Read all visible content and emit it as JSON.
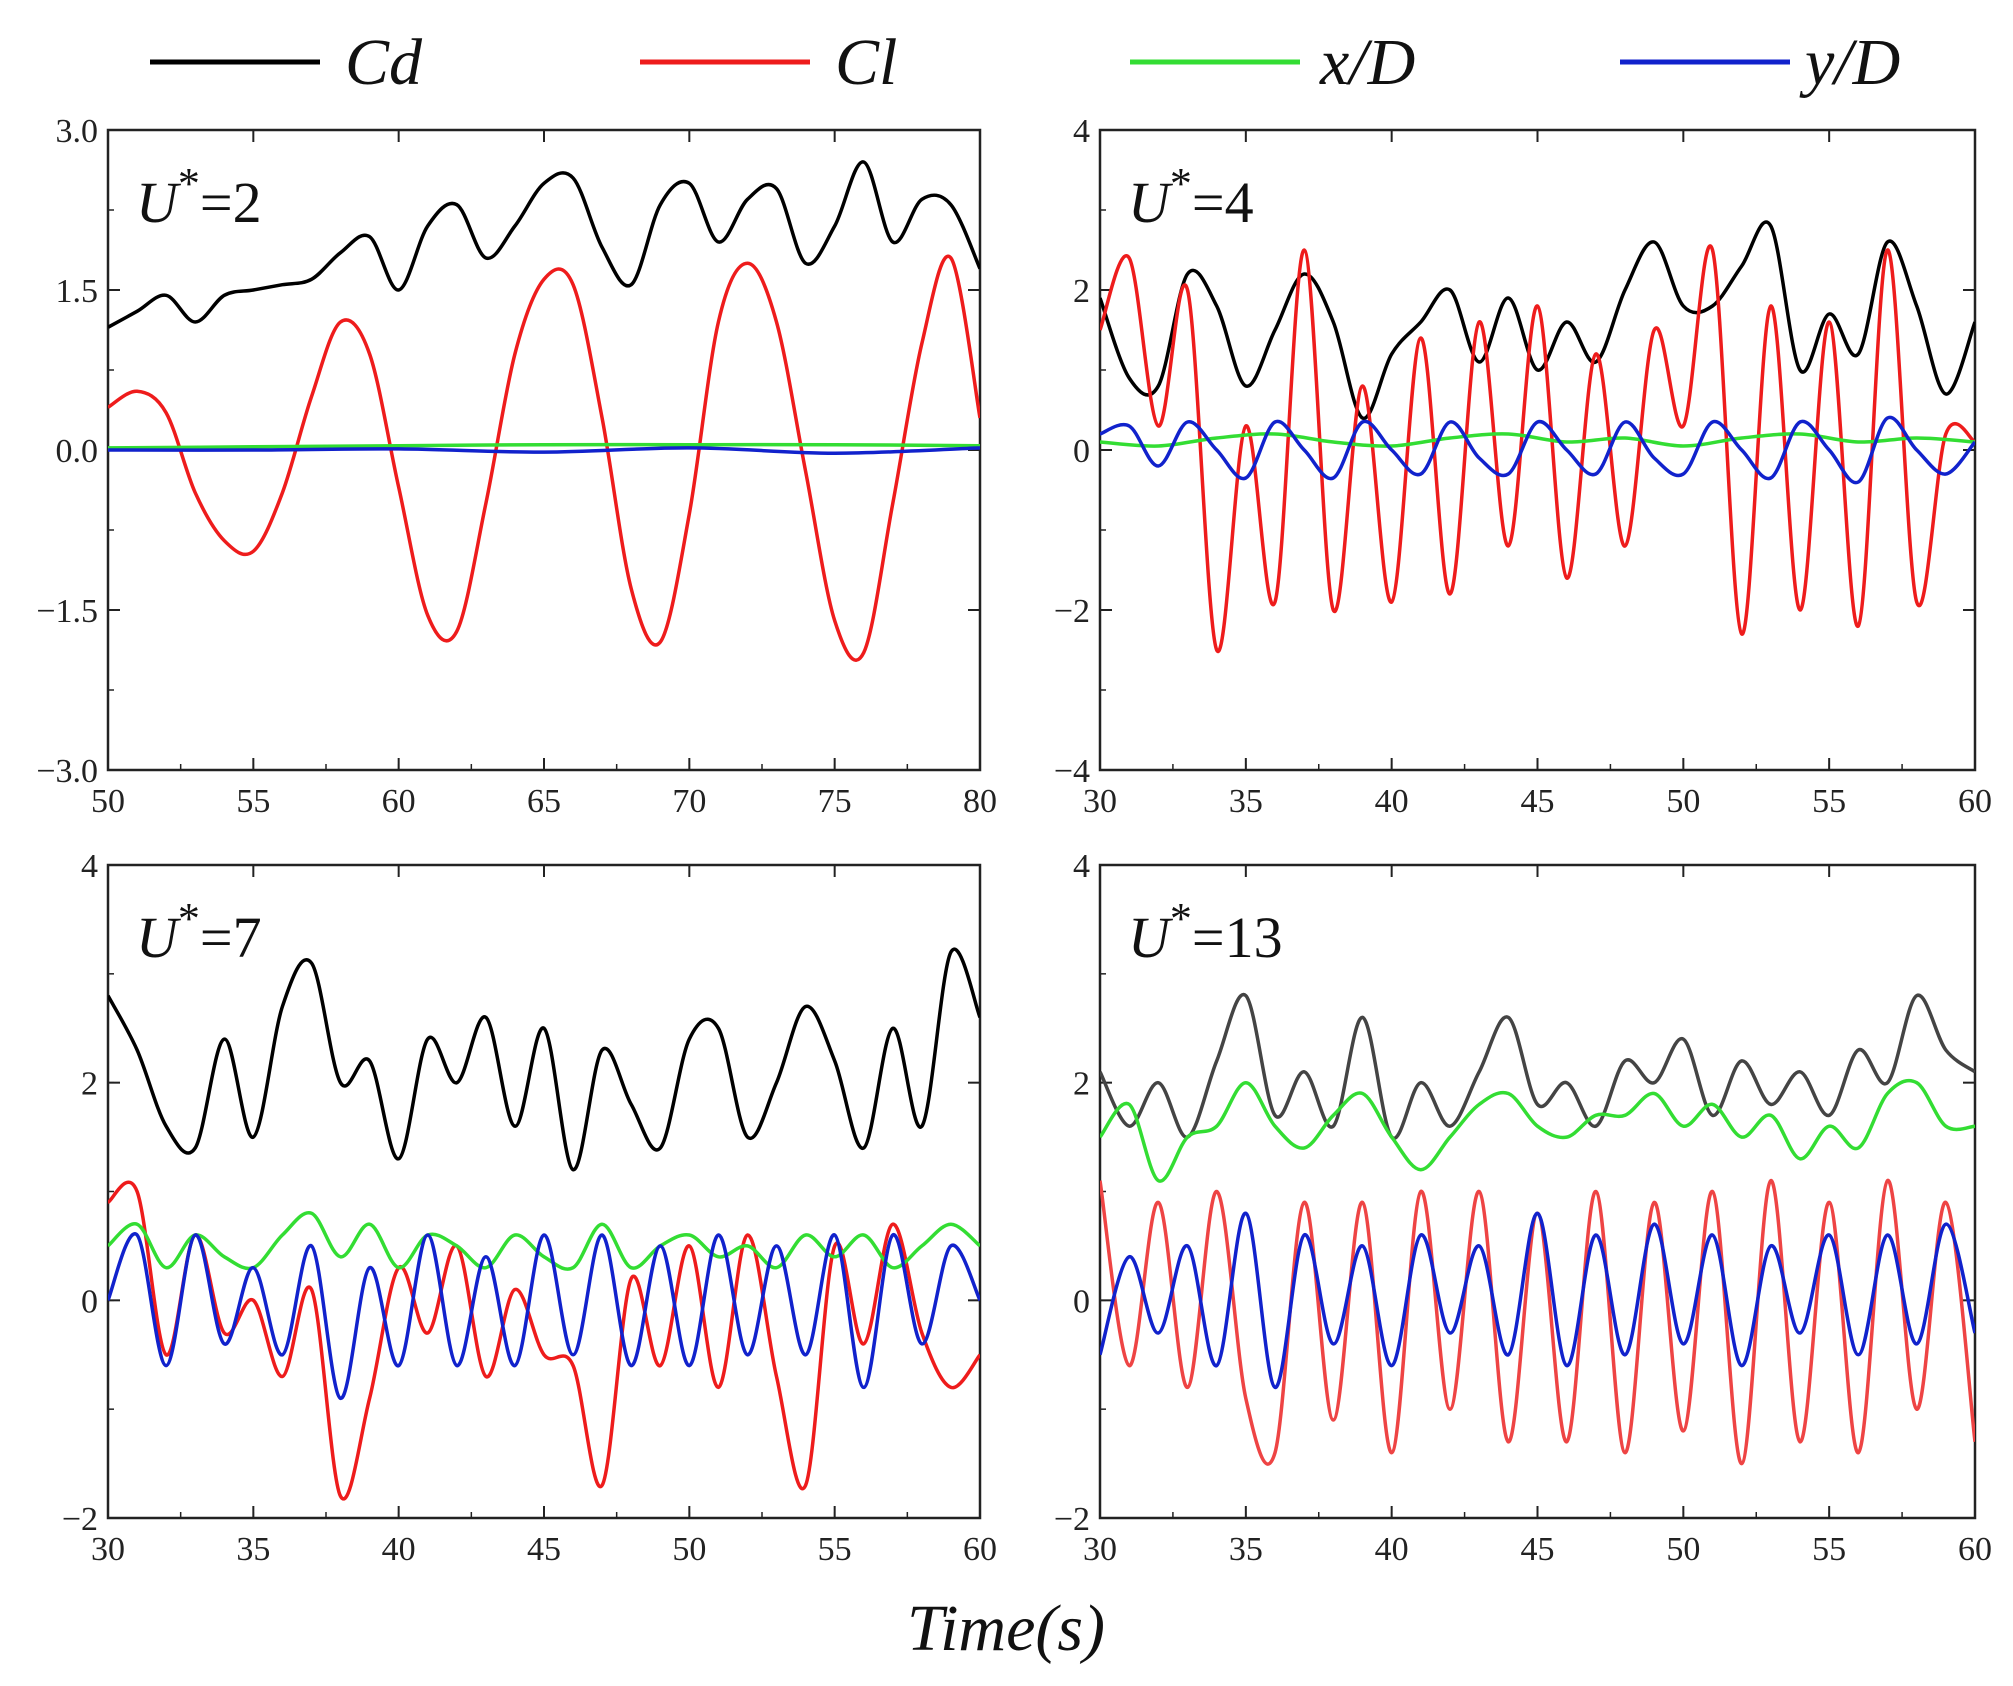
{
  "figure": {
    "xlabel": "Time(s)"
  },
  "legend": [
    {
      "label": "Cd",
      "color": "#000000"
    },
    {
      "label": "Cl",
      "color": "#ee1c1c"
    },
    {
      "label": "x/D",
      "color": "#33dd33"
    },
    {
      "label": "y/D",
      "color": "#1122cc"
    }
  ],
  "chart_data": [
    {
      "type": "line",
      "title": "U*=2",
      "xlim": [
        50,
        80
      ],
      "ylim": [
        -3.0,
        3.0
      ],
      "xticks": [
        50,
        55,
        60,
        65,
        70,
        75,
        80
      ],
      "yticks": [
        -3.0,
        -1.5,
        0.0,
        1.5,
        3.0
      ],
      "ytick_labels": [
        "−3.0",
        "−1.5",
        "0.0",
        "1.5",
        "3.0"
      ],
      "series": [
        {
          "name": "Cd",
          "color": "#000000",
          "x": [
            50,
            51,
            52,
            53,
            54,
            55,
            56,
            57,
            58,
            59,
            60,
            61,
            62,
            63,
            64,
            65,
            66,
            67,
            68,
            69,
            70,
            71,
            72,
            73,
            74,
            75,
            76,
            77,
            78,
            79,
            80
          ],
          "y": [
            1.15,
            1.3,
            1.45,
            1.2,
            1.45,
            1.5,
            1.55,
            1.6,
            1.85,
            2.0,
            1.5,
            2.1,
            2.3,
            1.8,
            2.1,
            2.5,
            2.55,
            1.9,
            1.55,
            2.3,
            2.5,
            1.95,
            2.35,
            2.45,
            1.75,
            2.1,
            2.7,
            1.95,
            2.35,
            2.3,
            1.7
          ]
        },
        {
          "name": "Cl",
          "color": "#ee1c1c",
          "x": [
            50,
            51,
            52,
            53,
            54,
            55,
            56,
            57,
            58,
            59,
            60,
            61,
            62,
            63,
            64,
            65,
            66,
            67,
            68,
            69,
            70,
            71,
            72,
            73,
            74,
            75,
            76,
            77,
            78,
            79,
            80
          ],
          "y": [
            0.4,
            0.55,
            0.35,
            -0.4,
            -0.85,
            -0.95,
            -0.4,
            0.5,
            1.2,
            0.9,
            -0.35,
            -1.55,
            -1.7,
            -0.5,
            0.9,
            1.6,
            1.55,
            0.3,
            -1.3,
            -1.8,
            -0.6,
            1.2,
            1.75,
            1.2,
            -0.2,
            -1.6,
            -1.9,
            -0.5,
            1.0,
            1.8,
            0.3
          ]
        },
        {
          "name": "x/D",
          "color": "#33dd33",
          "x": [
            50,
            55,
            60,
            65,
            70,
            75,
            80
          ],
          "y": [
            0.02,
            0.03,
            0.04,
            0.05,
            0.05,
            0.05,
            0.04
          ]
        },
        {
          "name": "y/D",
          "color": "#1122cc",
          "x": [
            50,
            55,
            60,
            65,
            70,
            75,
            80
          ],
          "y": [
            0.0,
            0.0,
            0.01,
            -0.02,
            0.02,
            -0.03,
            0.02
          ]
        }
      ]
    },
    {
      "type": "line",
      "title": "U*=4",
      "xlim": [
        30,
        60
      ],
      "ylim": [
        -4,
        4
      ],
      "xticks": [
        30,
        35,
        40,
        45,
        50,
        55,
        60
      ],
      "yticks": [
        -4,
        -2,
        0,
        2,
        4
      ],
      "ytick_labels": [
        "−4",
        "−2",
        "0",
        "2",
        "4"
      ],
      "series": [
        {
          "name": "Cd",
          "color": "#000000",
          "x": [
            30,
            31,
            32,
            33,
            34,
            35,
            36,
            37,
            38,
            39,
            40,
            41,
            42,
            43,
            44,
            45,
            46,
            47,
            48,
            49,
            50,
            51,
            52,
            53,
            54,
            55,
            56,
            57,
            58,
            59,
            60
          ],
          "y": [
            1.9,
            0.9,
            0.8,
            2.2,
            1.8,
            0.8,
            1.5,
            2.2,
            1.6,
            0.4,
            1.2,
            1.6,
            2.0,
            1.1,
            1.9,
            1.0,
            1.6,
            1.1,
            2.0,
            2.6,
            1.8,
            1.8,
            2.3,
            2.8,
            1.0,
            1.7,
            1.2,
            2.6,
            1.8,
            0.7,
            1.6
          ]
        },
        {
          "name": "Cl",
          "color": "#ee1c1c",
          "x": [
            30,
            31,
            32,
            33,
            34,
            35,
            36,
            37,
            38,
            39,
            40,
            41,
            42,
            43,
            44,
            45,
            46,
            47,
            48,
            49,
            50,
            51,
            52,
            53,
            54,
            55,
            56,
            57,
            58,
            59,
            60
          ],
          "y": [
            1.5,
            2.4,
            0.3,
            2.0,
            -2.5,
            0.3,
            -1.9,
            2.5,
            -2.0,
            0.8,
            -1.9,
            1.4,
            -1.8,
            1.6,
            -1.2,
            1.8,
            -1.6,
            1.2,
            -1.2,
            1.5,
            0.3,
            2.5,
            -2.3,
            1.8,
            -2.0,
            1.6,
            -2.2,
            2.5,
            -1.9,
            0.2,
            0.1
          ]
        },
        {
          "name": "x/D",
          "color": "#33dd33",
          "x": [
            30,
            32,
            34,
            36,
            38,
            40,
            42,
            44,
            46,
            48,
            50,
            52,
            54,
            56,
            58,
            60
          ],
          "y": [
            0.1,
            0.05,
            0.15,
            0.2,
            0.1,
            0.05,
            0.15,
            0.2,
            0.1,
            0.15,
            0.05,
            0.15,
            0.2,
            0.1,
            0.15,
            0.1
          ]
        },
        {
          "name": "y/D",
          "color": "#1122cc",
          "x": [
            30,
            31,
            32,
            33,
            34,
            35,
            36,
            37,
            38,
            39,
            40,
            41,
            42,
            43,
            44,
            45,
            46,
            47,
            48,
            49,
            50,
            51,
            52,
            53,
            54,
            55,
            56,
            57,
            58,
            59,
            60
          ],
          "y": [
            0.2,
            0.3,
            -0.2,
            0.35,
            0.0,
            -0.35,
            0.35,
            0.0,
            -0.35,
            0.35,
            0.0,
            -0.3,
            0.35,
            -0.1,
            -0.3,
            0.35,
            0.0,
            -0.3,
            0.35,
            -0.1,
            -0.3,
            0.35,
            0.0,
            -0.35,
            0.35,
            0.0,
            -0.4,
            0.4,
            0.0,
            -0.3,
            0.1
          ]
        }
      ]
    },
    {
      "type": "line",
      "title": "U*=7",
      "xlim": [
        30,
        60
      ],
      "ylim": [
        -2,
        4
      ],
      "xticks": [
        30,
        35,
        40,
        45,
        50,
        55,
        60
      ],
      "yticks": [
        -2,
        0,
        2,
        4
      ],
      "ytick_labels": [
        "−2",
        "0",
        "2",
        "4"
      ],
      "series": [
        {
          "name": "Cd",
          "color": "#000000",
          "x": [
            30,
            31,
            32,
            33,
            34,
            35,
            36,
            37,
            38,
            39,
            40,
            41,
            42,
            43,
            44,
            45,
            46,
            47,
            48,
            49,
            50,
            51,
            52,
            53,
            54,
            55,
            56,
            57,
            58,
            59,
            60
          ],
          "y": [
            2.8,
            2.3,
            1.6,
            1.4,
            2.4,
            1.5,
            2.7,
            3.1,
            2.0,
            2.2,
            1.3,
            2.4,
            2.0,
            2.6,
            1.6,
            2.5,
            1.2,
            2.3,
            1.8,
            1.4,
            2.4,
            2.5,
            1.5,
            2.0,
            2.7,
            2.2,
            1.4,
            2.5,
            1.6,
            3.2,
            2.6
          ]
        },
        {
          "name": "Cl",
          "color": "#ee1c1c",
          "x": [
            30,
            31,
            32,
            33,
            34,
            35,
            36,
            37,
            38,
            39,
            40,
            41,
            42,
            43,
            44,
            45,
            46,
            47,
            48,
            49,
            50,
            51,
            52,
            53,
            54,
            55,
            56,
            57,
            58,
            59,
            60
          ],
          "y": [
            0.9,
            1.0,
            -0.5,
            0.6,
            -0.3,
            0.0,
            -0.7,
            0.1,
            -1.8,
            -0.9,
            0.3,
            -0.3,
            0.5,
            -0.7,
            0.1,
            -0.5,
            -0.6,
            -1.7,
            0.2,
            -0.6,
            0.5,
            -0.8,
            0.6,
            -0.7,
            -1.7,
            0.5,
            -0.4,
            0.7,
            -0.3,
            -0.8,
            -0.5
          ]
        },
        {
          "name": "x/D",
          "color": "#33dd33",
          "x": [
            30,
            31,
            32,
            33,
            34,
            35,
            36,
            37,
            38,
            39,
            40,
            41,
            42,
            43,
            44,
            45,
            46,
            47,
            48,
            49,
            50,
            51,
            52,
            53,
            54,
            55,
            56,
            57,
            58,
            59,
            60
          ],
          "y": [
            0.5,
            0.7,
            0.3,
            0.6,
            0.4,
            0.3,
            0.6,
            0.8,
            0.4,
            0.7,
            0.3,
            0.6,
            0.5,
            0.3,
            0.6,
            0.4,
            0.3,
            0.7,
            0.3,
            0.5,
            0.6,
            0.4,
            0.5,
            0.3,
            0.6,
            0.4,
            0.6,
            0.3,
            0.5,
            0.7,
            0.5
          ]
        },
        {
          "name": "y/D",
          "color": "#1122cc",
          "x": [
            30,
            31,
            32,
            33,
            34,
            35,
            36,
            37,
            38,
            39,
            40,
            41,
            42,
            43,
            44,
            45,
            46,
            47,
            48,
            49,
            50,
            51,
            52,
            53,
            54,
            55,
            56,
            57,
            58,
            59,
            60
          ],
          "y": [
            0.0,
            0.6,
            -0.6,
            0.6,
            -0.4,
            0.3,
            -0.5,
            0.5,
            -0.9,
            0.3,
            -0.6,
            0.6,
            -0.6,
            0.4,
            -0.6,
            0.6,
            -0.5,
            0.6,
            -0.6,
            0.5,
            -0.6,
            0.6,
            -0.5,
            0.5,
            -0.5,
            0.6,
            -0.8,
            0.6,
            -0.4,
            0.5,
            0.0
          ]
        }
      ]
    },
    {
      "type": "line",
      "title": "U*=13",
      "xlim": [
        30,
        60
      ],
      "ylim": [
        -2,
        4
      ],
      "xticks": [
        30,
        35,
        40,
        45,
        50,
        55,
        60
      ],
      "yticks": [
        -2,
        0,
        2,
        4
      ],
      "ytick_labels": [
        "−2",
        "0",
        "2",
        "4"
      ],
      "series": [
        {
          "name": "Cd",
          "color": "#444444",
          "x": [
            30,
            31,
            32,
            33,
            34,
            35,
            36,
            37,
            38,
            39,
            40,
            41,
            42,
            43,
            44,
            45,
            46,
            47,
            48,
            49,
            50,
            51,
            52,
            53,
            54,
            55,
            56,
            57,
            58,
            59,
            60
          ],
          "y": [
            2.1,
            1.6,
            2.0,
            1.5,
            2.2,
            2.8,
            1.7,
            2.1,
            1.6,
            2.6,
            1.5,
            2.0,
            1.6,
            2.1,
            2.6,
            1.8,
            2.0,
            1.6,
            2.2,
            2.0,
            2.4,
            1.7,
            2.2,
            1.8,
            2.1,
            1.7,
            2.3,
            2.0,
            2.8,
            2.3,
            2.1
          ]
        },
        {
          "name": "Cl",
          "color": "#ee4444",
          "x": [
            30,
            31,
            32,
            33,
            34,
            35,
            36,
            37,
            38,
            39,
            40,
            41,
            42,
            43,
            44,
            45,
            46,
            47,
            48,
            49,
            50,
            51,
            52,
            53,
            54,
            55,
            56,
            57,
            58,
            59,
            60
          ],
          "y": [
            1.1,
            -0.6,
            0.9,
            -0.8,
            1.0,
            -0.9,
            -1.4,
            0.9,
            -1.1,
            0.9,
            -1.4,
            1.0,
            -1.0,
            1.0,
            -1.3,
            0.8,
            -1.3,
            1.0,
            -1.4,
            0.9,
            -1.2,
            1.0,
            -1.5,
            1.1,
            -1.3,
            0.9,
            -1.4,
            1.1,
            -1.0,
            0.9,
            -1.3
          ]
        },
        {
          "name": "x/D",
          "color": "#33dd33",
          "x": [
            30,
            31,
            32,
            33,
            34,
            35,
            36,
            37,
            38,
            39,
            40,
            41,
            42,
            43,
            44,
            45,
            46,
            47,
            48,
            49,
            50,
            51,
            52,
            53,
            54,
            55,
            56,
            57,
            58,
            59,
            60
          ],
          "y": [
            1.5,
            1.8,
            1.1,
            1.5,
            1.6,
            2.0,
            1.6,
            1.4,
            1.7,
            1.9,
            1.5,
            1.2,
            1.5,
            1.8,
            1.9,
            1.6,
            1.5,
            1.7,
            1.7,
            1.9,
            1.6,
            1.8,
            1.5,
            1.7,
            1.3,
            1.6,
            1.4,
            1.9,
            2.0,
            1.6,
            1.6
          ]
        },
        {
          "name": "y/D",
          "color": "#1122cc",
          "x": [
            30,
            31,
            32,
            33,
            34,
            35,
            36,
            37,
            38,
            39,
            40,
            41,
            42,
            43,
            44,
            45,
            46,
            47,
            48,
            49,
            50,
            51,
            52,
            53,
            54,
            55,
            56,
            57,
            58,
            59,
            60
          ],
          "y": [
            -0.5,
            0.4,
            -0.3,
            0.5,
            -0.6,
            0.8,
            -0.8,
            0.6,
            -0.4,
            0.5,
            -0.6,
            0.6,
            -0.3,
            0.5,
            -0.5,
            0.8,
            -0.6,
            0.6,
            -0.5,
            0.7,
            -0.4,
            0.6,
            -0.6,
            0.5,
            -0.3,
            0.6,
            -0.5,
            0.6,
            -0.4,
            0.7,
            -0.3
          ]
        }
      ]
    }
  ]
}
